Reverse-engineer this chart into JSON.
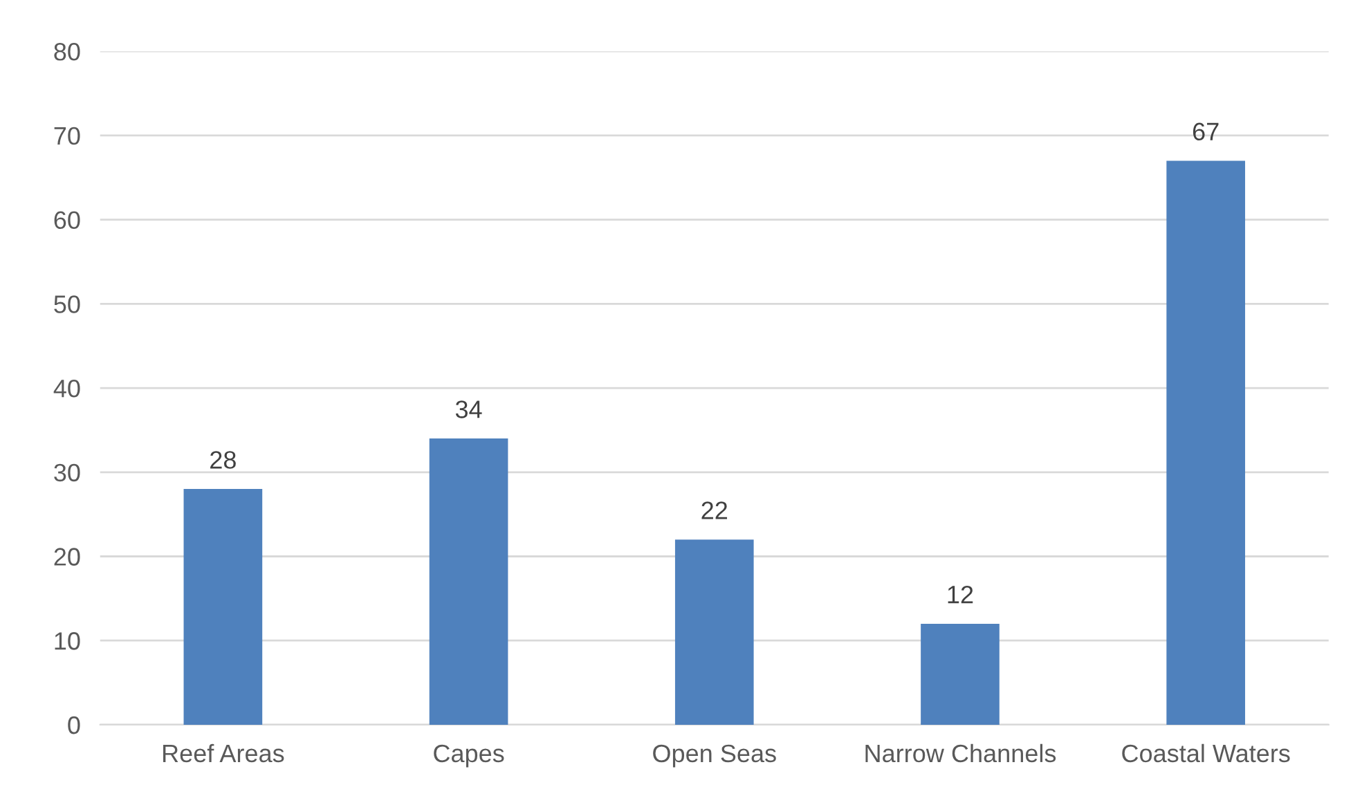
{
  "chart_data": {
    "type": "bar",
    "categories": [
      "Reef Areas",
      "Capes",
      "Open Seas",
      "Narrow Channels",
      "Coastal Waters"
    ],
    "values": [
      28,
      34,
      22,
      12,
      67
    ],
    "color": "#4f81bd",
    "ylim": [
      0,
      80
    ],
    "yticks": [
      0,
      10,
      20,
      30,
      40,
      50,
      60,
      70,
      80
    ],
    "grid": "y",
    "data_labels": true
  }
}
